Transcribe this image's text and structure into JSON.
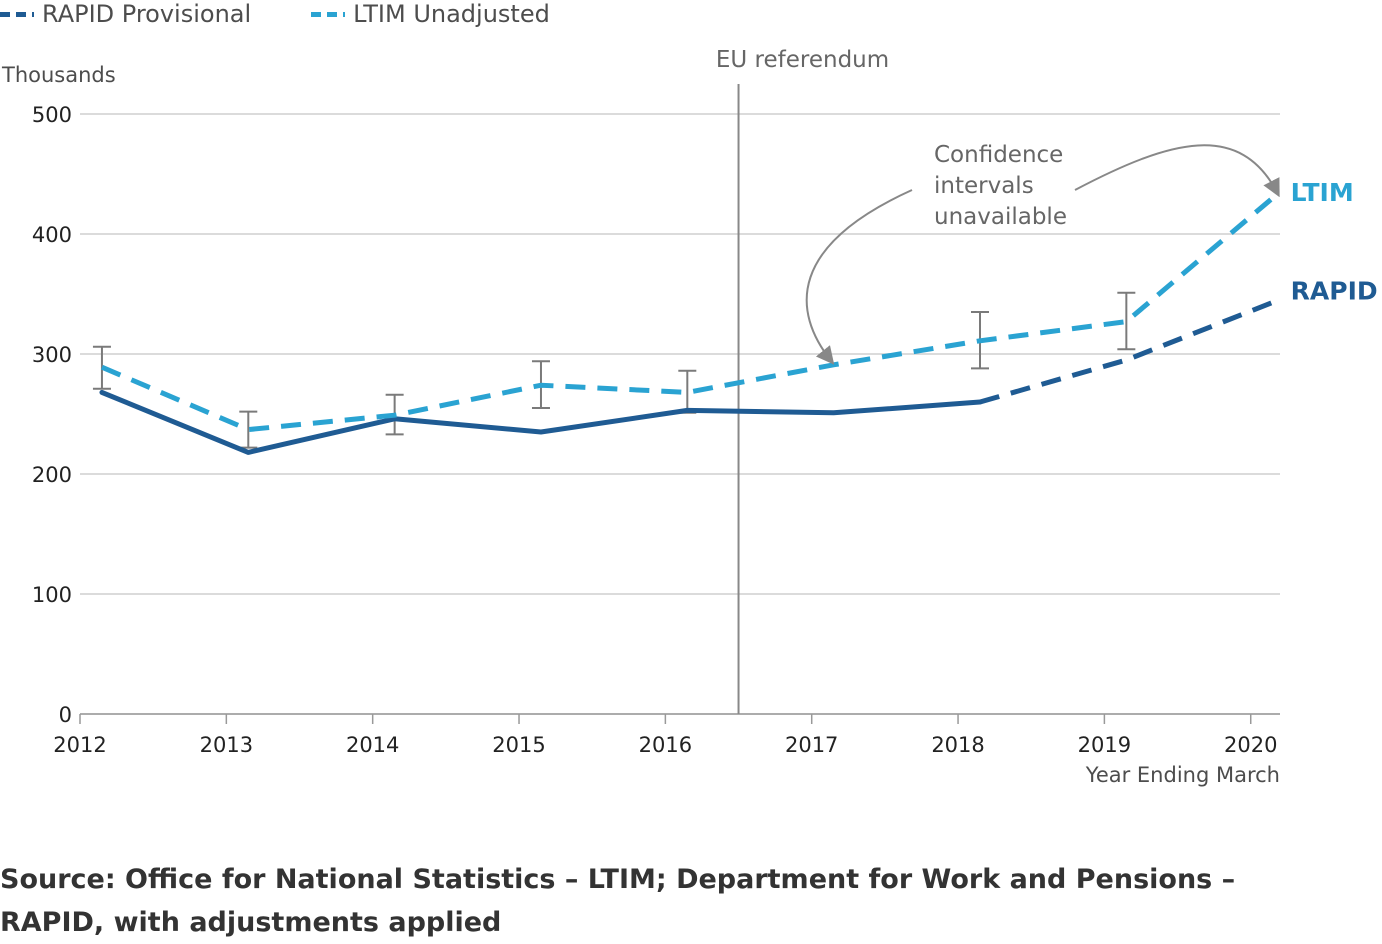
{
  "legend": [
    {
      "label": "RAPID Provisional",
      "color": "#1f5b93"
    },
    {
      "label": "LTIM Unadjusted",
      "color": "#2aa3d2"
    }
  ],
  "source": "Source: Office for National Statistics – LTIM; Department for Work and Pensions – RAPID, with adjustments applied",
  "chart_data": {
    "type": "line",
    "ylabel": "Thousands",
    "xlabel": "Year Ending March",
    "ylim": [
      0,
      500
    ],
    "y_ticks": [
      0,
      100,
      200,
      300,
      400,
      500
    ],
    "x_ticks": [
      "2012",
      "2013",
      "2014",
      "2015",
      "2016",
      "2017",
      "2018",
      "2019",
      "2020"
    ],
    "grid": true,
    "series": [
      {
        "name": "RAPID",
        "color": "#1f5b93",
        "x": [
          2012.15,
          2013.15,
          2014.15,
          2015.15,
          2016.15,
          2017.15,
          2018.15,
          2019.15,
          2020.15
        ],
        "values": [
          268,
          218,
          246,
          235,
          253,
          251,
          260,
          295,
          343
        ],
        "provisional_from_index": 6
      },
      {
        "name": "LTIM",
        "color": "#2aa3d2",
        "x": [
          2012.15,
          2013.15,
          2014.15,
          2015.15,
          2016.15,
          2017.15,
          2018.15,
          2019.15,
          2020.15
        ],
        "values": [
          289,
          237,
          249,
          274,
          268,
          291,
          311,
          327,
          430
        ]
      }
    ],
    "error_bars": [
      {
        "x": 2012.15,
        "low": 271,
        "high": 306
      },
      {
        "x": 2013.15,
        "low": 222,
        "high": 252
      },
      {
        "x": 2014.15,
        "low": 233,
        "high": 266
      },
      {
        "x": 2015.15,
        "low": 255,
        "high": 294
      },
      {
        "x": 2016.15,
        "low": 251,
        "high": 286
      },
      {
        "x": 2018.15,
        "low": 288,
        "high": 335
      },
      {
        "x": 2019.15,
        "low": 304,
        "high": 351
      }
    ],
    "reference_line": {
      "x": 2016.5,
      "label": "EU referendum"
    },
    "annotation": {
      "lines": [
        "Confidence",
        "intervals",
        "unavailable"
      ]
    },
    "end_labels": [
      {
        "series": "LTIM",
        "text": "LTIM"
      },
      {
        "series": "RAPID",
        "text": "RAPID"
      }
    ]
  }
}
